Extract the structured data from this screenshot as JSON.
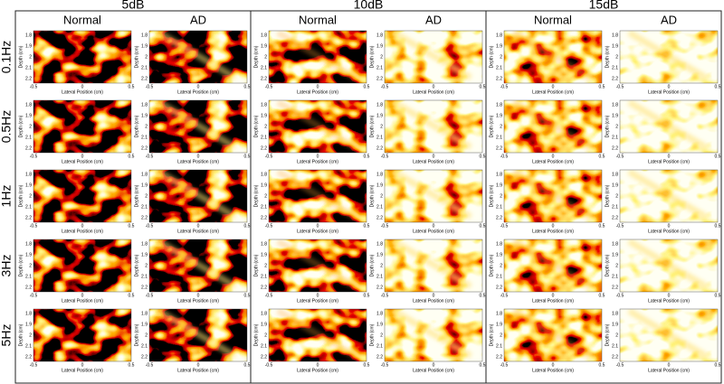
{
  "groups": [
    {
      "label": "5dB",
      "panels": [
        "Normal",
        "AD"
      ]
    },
    {
      "label": "10dB",
      "panels": [
        "Normal",
        "AD"
      ]
    },
    {
      "label": "15dB",
      "panels": [
        "Normal",
        "AD"
      ]
    }
  ],
  "rows": [
    "0.1Hz",
    "0.5Hz",
    "1Hz",
    "3Hz",
    "5Hz"
  ],
  "axes": {
    "xlabel": "Lateral Position (cm)",
    "ylabel": "Depth (cm)",
    "xticks": [
      -0.5,
      0,
      0.5
    ],
    "yticks": [
      1.8,
      1.9,
      2,
      2.1,
      2.2
    ]
  }
}
